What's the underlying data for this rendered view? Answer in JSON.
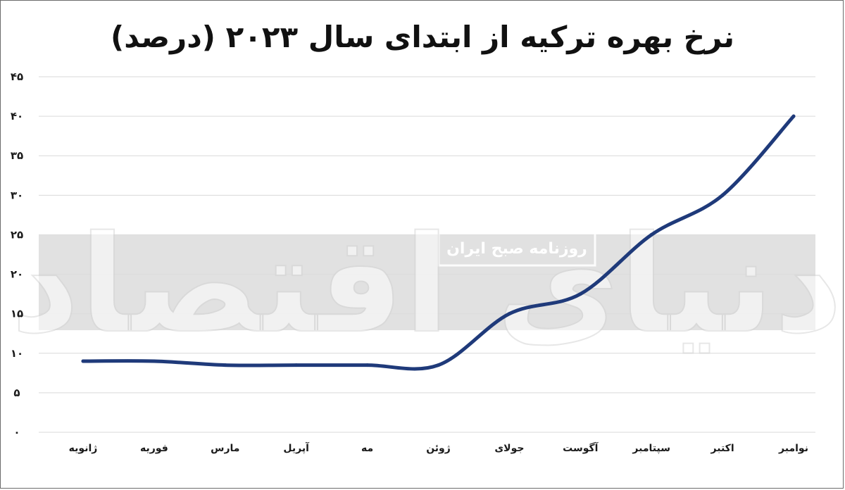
{
  "chart_data": {
    "type": "line",
    "title": "نرخ بهره ترکیه از ابتدای سال ۲۰۲۳ (درصد)",
    "categories": [
      "ژانویه",
      "فوریه",
      "مارس",
      "آپریل",
      "مه",
      "ژوئن",
      "جولای",
      "آگوست",
      "سپتامبر",
      "اکتبر",
      "نوامبر"
    ],
    "series": [
      {
        "values": [
          9,
          9,
          8.5,
          8.5,
          8.5,
          8.5,
          15,
          17.5,
          25,
          30,
          40
        ]
      }
    ],
    "yticks": [
      "۰",
      "۵",
      "۱۰",
      "۱۵",
      "۲۰",
      "۲۵",
      "۳۰",
      "۳۵",
      "۴۰",
      "۴۵"
    ],
    "ylim": [
      0,
      45
    ],
    "grid": true,
    "line_color": "#1f3a7a",
    "grid_color": "#d9d9d9"
  },
  "watermark": {
    "text": "دنیای اقتصاد",
    "badge": "روزنامه صبح ایران"
  }
}
